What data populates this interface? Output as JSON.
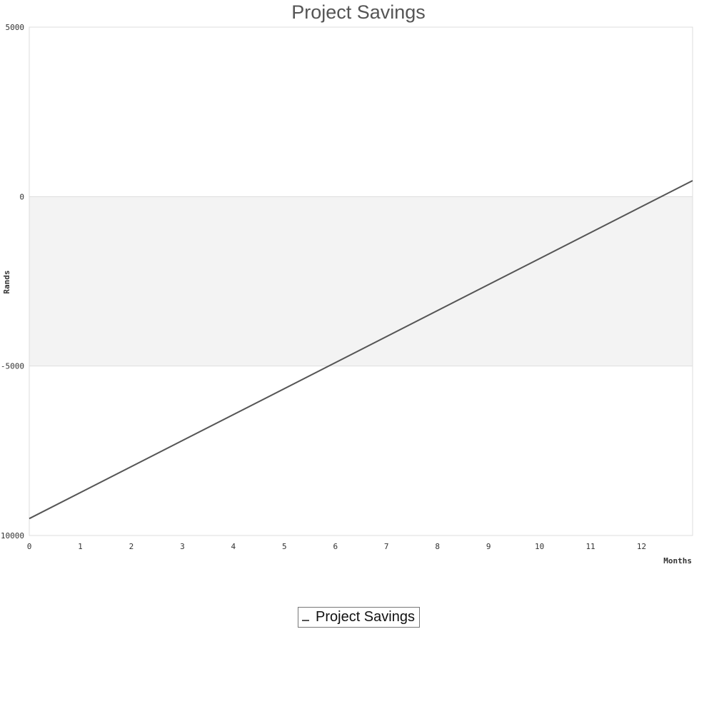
{
  "chart_data": {
    "type": "line",
    "title": "Project Savings",
    "xlabel": "Months",
    "ylabel": "Rands",
    "xlim": [
      0,
      13
    ],
    "ylim": [
      -10000,
      5000
    ],
    "x_ticks": [
      0,
      1,
      2,
      3,
      4,
      5,
      6,
      7,
      8,
      9,
      10,
      11,
      12
    ],
    "y_ticks": [
      5000,
      0,
      -5000,
      -10000
    ],
    "y_tick_labels": [
      "5000",
      "0",
      "-5000",
      "-10000"
    ],
    "shaded_band": [
      -5000,
      0
    ],
    "grid": false,
    "legend_placement": "bottom-center",
    "series": [
      {
        "name": "Project Savings",
        "color": "#555555",
        "x": [
          0,
          13
        ],
        "y": [
          -9500,
          470
        ]
      }
    ]
  },
  "colors": {
    "plot_background": "#ffffff",
    "band": "#f3f3f3",
    "plot_border": "#dddddd",
    "line": "#555555"
  }
}
